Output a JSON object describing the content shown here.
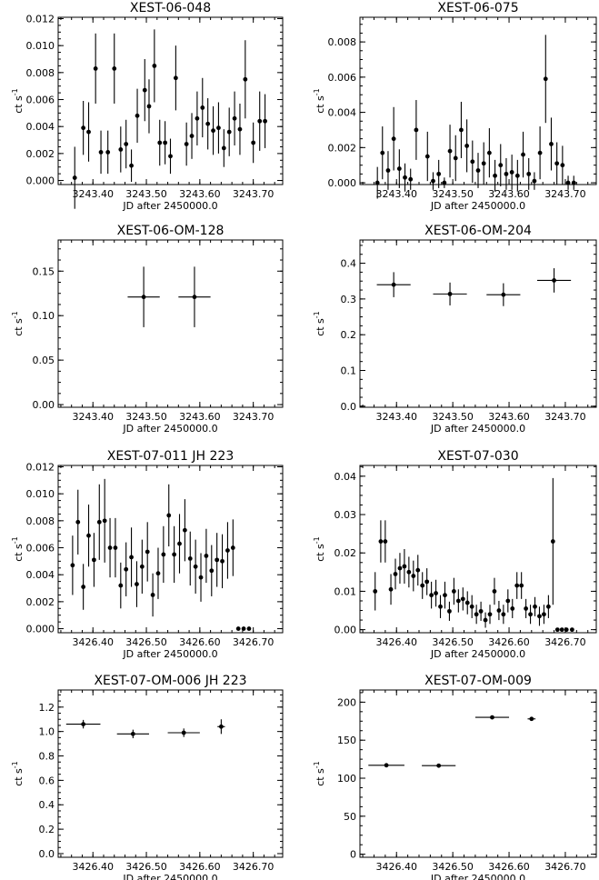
{
  "chart_data": [
    {
      "type": "scatter",
      "title": "XEST-06-048",
      "xlabel": "JD after 2450000.0",
      "ylabel": "ct s",
      "ylabel_sup": "-1",
      "xlim": [
        3243.335,
        3243.755
      ],
      "ylim": [
        -0.0003,
        0.0121
      ],
      "xticks": [
        3243.4,
        3243.5,
        3243.6,
        3243.7
      ],
      "xtick_labels": [
        "3243.40",
        "3243.50",
        "3243.60",
        "3243.70"
      ],
      "yticks": [
        0.0,
        0.002,
        0.004,
        0.006,
        0.008,
        0.01,
        0.012
      ],
      "ytick_labels": [
        "0.000",
        "0.002",
        "0.004",
        "0.006",
        "0.008",
        "0.010",
        "0.012"
      ],
      "series": [
        {
          "x": [
            3243.366,
            3243.382,
            3243.392,
            3243.405,
            3243.415,
            3243.428,
            3243.44,
            3243.452,
            3243.462,
            3243.472,
            3243.483,
            3243.497,
            3243.505,
            3243.515,
            3243.525,
            3243.535,
            3243.545,
            3243.555,
            3243.575,
            3243.585,
            3243.595,
            3243.605,
            3243.615,
            3243.625,
            3243.635,
            3243.645,
            3243.655,
            3243.665,
            3243.675,
            3243.685,
            3243.7,
            3243.712,
            3243.722
          ],
          "y": [
            0.0002,
            0.0039,
            0.0036,
            0.0083,
            0.0021,
            0.0021,
            0.0083,
            0.0023,
            0.0027,
            0.0011,
            0.0048,
            0.0067,
            0.0055,
            0.0085,
            0.0028,
            0.0028,
            0.0018,
            0.0076,
            0.0027,
            0.0033,
            0.0046,
            0.0054,
            0.0042,
            0.0037,
            0.0039,
            0.0024,
            0.0036,
            0.0046,
            0.0038,
            0.0075,
            0.0028,
            0.0044,
            0.0044
          ],
          "yerr": [
            0.0023,
            0.002,
            0.0022,
            0.0026,
            0.0016,
            0.0016,
            0.0026,
            0.0017,
            0.0018,
            0.0012,
            0.002,
            0.0023,
            0.002,
            0.0027,
            0.0017,
            0.0016,
            0.0013,
            0.0024,
            0.0016,
            0.0017,
            0.002,
            0.0022,
            0.0019,
            0.0018,
            0.0019,
            0.0014,
            0.0018,
            0.002,
            0.0019,
            0.0029,
            0.0015,
            0.0022,
            0.002
          ]
        }
      ]
    },
    {
      "type": "scatter",
      "title": "XEST-06-075",
      "xlabel": "JD after 2450000.0",
      "ylabel": "ct s",
      "ylabel_sup": "-1",
      "xlim": [
        3243.335,
        3243.755
      ],
      "ylim": [
        -0.0001,
        0.0094
      ],
      "xticks": [
        3243.4,
        3243.5,
        3243.6,
        3243.7
      ],
      "xtick_labels": [
        "3243.40",
        "3243.50",
        "3243.60",
        "3243.70"
      ],
      "yticks": [
        0.0,
        0.002,
        0.004,
        0.006,
        0.008
      ],
      "ytick_labels": [
        "0.000",
        "0.002",
        "0.004",
        "0.006",
        "0.008"
      ],
      "series": [
        {
          "x": [
            3243.366,
            3243.375,
            3243.385,
            3243.395,
            3243.405,
            3243.415,
            3243.425,
            3243.435,
            3243.455,
            3243.465,
            3243.475,
            3243.485,
            3243.495,
            3243.505,
            3243.515,
            3243.525,
            3243.535,
            3243.545,
            3243.555,
            3243.565,
            3243.575,
            3243.585,
            3243.595,
            3243.605,
            3243.615,
            3243.625,
            3243.635,
            3243.645,
            3243.655,
            3243.665,
            3243.675,
            3243.685,
            3243.695,
            3243.705,
            3243.715
          ],
          "y": [
            0.0,
            0.0017,
            0.0007,
            0.0025,
            0.0008,
            0.0003,
            0.0002,
            0.003,
            0.0015,
            0.0001,
            0.0005,
            0.0,
            0.0018,
            0.0014,
            0.003,
            0.0021,
            0.0012,
            0.0007,
            0.0011,
            0.0017,
            0.0004,
            0.001,
            0.0005,
            0.0006,
            0.0004,
            0.0016,
            0.0005,
            0.0001,
            0.0017,
            0.0059,
            0.0022,
            0.0011,
            0.001,
            0.0,
            0.0
          ],
          "yerr": [
            0.0009,
            0.0015,
            0.0011,
            0.0018,
            0.0011,
            0.0008,
            0.0006,
            0.0017,
            0.0014,
            0.0005,
            0.0008,
            0.0003,
            0.0015,
            0.0013,
            0.0016,
            0.0015,
            0.0012,
            0.001,
            0.0012,
            0.0014,
            0.0009,
            0.0012,
            0.0009,
            0.001,
            0.0009,
            0.0013,
            0.0009,
            0.0005,
            0.0015,
            0.0025,
            0.0015,
            0.0012,
            0.0011,
            0.0004,
            0.0004
          ]
        }
      ]
    },
    {
      "type": "scatter",
      "title": "XEST-06-OM-128",
      "xlabel": "JD after 2450000.0",
      "ylabel": "ct s",
      "ylabel_sup": "-1",
      "xlim": [
        3243.335,
        3243.755
      ],
      "ylim": [
        -0.003,
        0.185
      ],
      "xticks": [
        3243.4,
        3243.5,
        3243.6,
        3243.7
      ],
      "xtick_labels": [
        "3243.40",
        "3243.50",
        "3243.60",
        "3243.70"
      ],
      "yticks": [
        0.0,
        0.05,
        0.1,
        0.15
      ],
      "ytick_labels": [
        "0.00",
        "0.05",
        "0.10",
        "0.15"
      ],
      "series": [
        {
          "x": [
            3243.495,
            3243.59
          ],
          "y": [
            0.121,
            0.121
          ],
          "xerr": [
            0.03,
            0.03
          ],
          "yerr": [
            0.034,
            0.034
          ]
        }
      ]
    },
    {
      "type": "scatter",
      "title": "XEST-06-OM-204",
      "xlabel": "JD after 2450000.0",
      "ylabel": "ct s",
      "ylabel_sup": "-1",
      "xlim": [
        3243.335,
        3243.755
      ],
      "ylim": [
        -0.003,
        0.465
      ],
      "xticks": [
        3243.4,
        3243.5,
        3243.6,
        3243.7
      ],
      "xtick_labels": [
        "3243.40",
        "3243.50",
        "3243.60",
        "3243.70"
      ],
      "yticks": [
        0.0,
        0.1,
        0.2,
        0.3,
        0.4
      ],
      "ytick_labels": [
        "0.0",
        "0.1",
        "0.2",
        "0.3",
        "0.4"
      ],
      "series": [
        {
          "x": [
            3243.395,
            3243.495,
            3243.59,
            3243.68
          ],
          "y": [
            0.34,
            0.314,
            0.312,
            0.352
          ],
          "xerr": [
            0.03,
            0.03,
            0.03,
            0.03
          ],
          "yerr": [
            0.035,
            0.032,
            0.032,
            0.034
          ]
        }
      ]
    },
    {
      "type": "scatter",
      "title": "XEST-07-011 JH 223",
      "xlabel": "JD after 2450000.0",
      "ylabel": "ct s",
      "ylabel_sup": "-1",
      "xlim": [
        3426.335,
        3426.755
      ],
      "ylim": [
        -0.0003,
        0.0121
      ],
      "xticks": [
        3426.4,
        3426.5,
        3426.6,
        3426.7
      ],
      "xtick_labels": [
        "3426.40",
        "3426.50",
        "3426.60",
        "3426.70"
      ],
      "yticks": [
        0.0,
        0.002,
        0.004,
        0.006,
        0.008,
        0.01,
        0.012
      ],
      "ytick_labels": [
        "0.000",
        "0.002",
        "0.004",
        "0.006",
        "0.008",
        "0.010",
        "0.012"
      ],
      "series": [
        {
          "x": [
            3426.362,
            3426.372,
            3426.382,
            3426.392,
            3426.402,
            3426.412,
            3426.422,
            3426.432,
            3426.442,
            3426.452,
            3426.462,
            3426.472,
            3426.482,
            3426.492,
            3426.502,
            3426.512,
            3426.522,
            3426.532,
            3426.542,
            3426.552,
            3426.562,
            3426.572,
            3426.582,
            3426.592,
            3426.602,
            3426.612,
            3426.622,
            3426.632,
            3426.642,
            3426.652,
            3426.662,
            3426.672,
            3426.682,
            3426.692
          ],
          "y": [
            0.0047,
            0.0079,
            0.0031,
            0.0069,
            0.0051,
            0.0079,
            0.008,
            0.006,
            0.006,
            0.0032,
            0.0044,
            0.0053,
            0.0033,
            0.0046,
            0.0057,
            0.0025,
            0.0041,
            0.0055,
            0.0084,
            0.0055,
            0.0063,
            0.0073,
            0.0052,
            0.0046,
            0.0038,
            0.0054,
            0.0043,
            0.0051,
            0.005,
            0.0058,
            0.006,
            0.0,
            0.0,
            0.0
          ],
          "yerr": [
            0.0022,
            0.0024,
            0.0017,
            0.0023,
            0.002,
            0.0028,
            0.0031,
            0.0022,
            0.0022,
            0.0017,
            0.002,
            0.0022,
            0.0017,
            0.002,
            0.0022,
            0.0016,
            0.0019,
            0.0021,
            0.0023,
            0.0021,
            0.0022,
            0.0023,
            0.002,
            0.002,
            0.0018,
            0.002,
            0.0019,
            0.002,
            0.002,
            0.0021,
            0.0021,
            0.0,
            0.0,
            0.0
          ]
        }
      ]
    },
    {
      "type": "scatter",
      "title": "XEST-07-030",
      "xlabel": "JD after 2450000.0",
      "ylabel": "ct s",
      "ylabel_sup": "-1",
      "xlim": [
        3426.335,
        3426.755
      ],
      "ylim": [
        -0.0008,
        0.0428
      ],
      "xticks": [
        3426.4,
        3426.5,
        3426.6,
        3426.7
      ],
      "xtick_labels": [
        "3426.40",
        "3426.50",
        "3426.60",
        "3426.70"
      ],
      "yticks": [
        0.0,
        0.01,
        0.02,
        0.03,
        0.04
      ],
      "ytick_labels": [
        "0.00",
        "0.01",
        "0.02",
        "0.03",
        "0.04"
      ],
      "series": [
        {
          "x": [
            3426.362,
            3426.372,
            3426.38,
            3426.39,
            3426.398,
            3426.406,
            3426.414,
            3426.422,
            3426.43,
            3426.438,
            3426.446,
            3426.454,
            3426.462,
            3426.47,
            3426.478,
            3426.486,
            3426.494,
            3426.502,
            3426.51,
            3426.518,
            3426.526,
            3426.534,
            3426.542,
            3426.55,
            3426.558,
            3426.566,
            3426.574,
            3426.582,
            3426.59,
            3426.598,
            3426.606,
            3426.614,
            3426.622,
            3426.63,
            3426.638,
            3426.646,
            3426.654,
            3426.662,
            3426.67,
            3426.678,
            3426.686,
            3426.694,
            3426.702,
            3426.712
          ],
          "y": [
            0.01,
            0.023,
            0.023,
            0.0105,
            0.0145,
            0.016,
            0.0165,
            0.015,
            0.014,
            0.0155,
            0.0115,
            0.0125,
            0.009,
            0.0095,
            0.006,
            0.009,
            0.0048,
            0.01,
            0.0075,
            0.008,
            0.007,
            0.006,
            0.004,
            0.0048,
            0.0025,
            0.004,
            0.01,
            0.005,
            0.004,
            0.0075,
            0.0055,
            0.0115,
            0.0115,
            0.0055,
            0.004,
            0.006,
            0.0035,
            0.004,
            0.006,
            0.023,
            0.0,
            0.0,
            0.0,
            0.0
          ],
          "yerr": [
            0.005,
            0.0055,
            0.0055,
            0.004,
            0.004,
            0.004,
            0.0045,
            0.004,
            0.004,
            0.004,
            0.0035,
            0.0035,
            0.0035,
            0.0035,
            0.003,
            0.0035,
            0.0025,
            0.0035,
            0.003,
            0.003,
            0.003,
            0.003,
            0.0025,
            0.0025,
            0.002,
            0.0025,
            0.0035,
            0.0025,
            0.0025,
            0.003,
            0.0025,
            0.0035,
            0.0035,
            0.0025,
            0.0025,
            0.0025,
            0.0025,
            0.0025,
            0.003,
            0.0165,
            0.0,
            0.0,
            0.0,
            0.0
          ]
        }
      ]
    },
    {
      "type": "scatter",
      "title": "XEST-07-OM-006 JH 223",
      "xlabel": "JD after 2450000.0",
      "ylabel": "ct s",
      "ylabel_sup": "-1",
      "xlim": [
        3426.335,
        3426.755
      ],
      "ylim": [
        -0.03,
        1.34
      ],
      "xticks": [
        3426.4,
        3426.5,
        3426.6,
        3426.7
      ],
      "xtick_labels": [
        "3426.40",
        "3426.50",
        "3426.60",
        "3426.70"
      ],
      "yticks": [
        0.0,
        0.2,
        0.4,
        0.6,
        0.8,
        1.0,
        1.2
      ],
      "ytick_labels": [
        "0.0",
        "0.2",
        "0.4",
        "0.6",
        "0.8",
        "1.0",
        "1.2"
      ],
      "series": [
        {
          "x": [
            3426.382,
            3426.475,
            3426.57,
            3426.64
          ],
          "y": [
            1.06,
            0.98,
            0.99,
            1.04
          ],
          "xerr": [
            0.032,
            0.03,
            0.03,
            0.007
          ],
          "yerr": [
            0.035,
            0.035,
            0.035,
            0.06
          ]
        }
      ]
    },
    {
      "type": "scatter",
      "title": "XEST-07-OM-009",
      "xlabel": "JD after 2450000.0",
      "ylabel": "ct s",
      "ylabel_sup": "-1",
      "xlim": [
        3426.335,
        3426.755
      ],
      "ylim": [
        -4,
        216
      ],
      "xticks": [
        3426.4,
        3426.5,
        3426.6,
        3426.7
      ],
      "xtick_labels": [
        "3426.40",
        "3426.50",
        "3426.60",
        "3426.70"
      ],
      "yticks": [
        0,
        50,
        100,
        150,
        200
      ],
      "ytick_labels": [
        "0",
        "50",
        "100",
        "150",
        "200"
      ],
      "series": [
        {
          "x": [
            3426.382,
            3426.475,
            3426.57,
            3426.64
          ],
          "y": [
            117,
            116.5,
            180,
            178
          ],
          "xerr": [
            0.032,
            0.03,
            0.03,
            0.007
          ],
          "yerr": [
            1.2,
            1.2,
            1.2,
            1.5
          ]
        }
      ]
    }
  ]
}
